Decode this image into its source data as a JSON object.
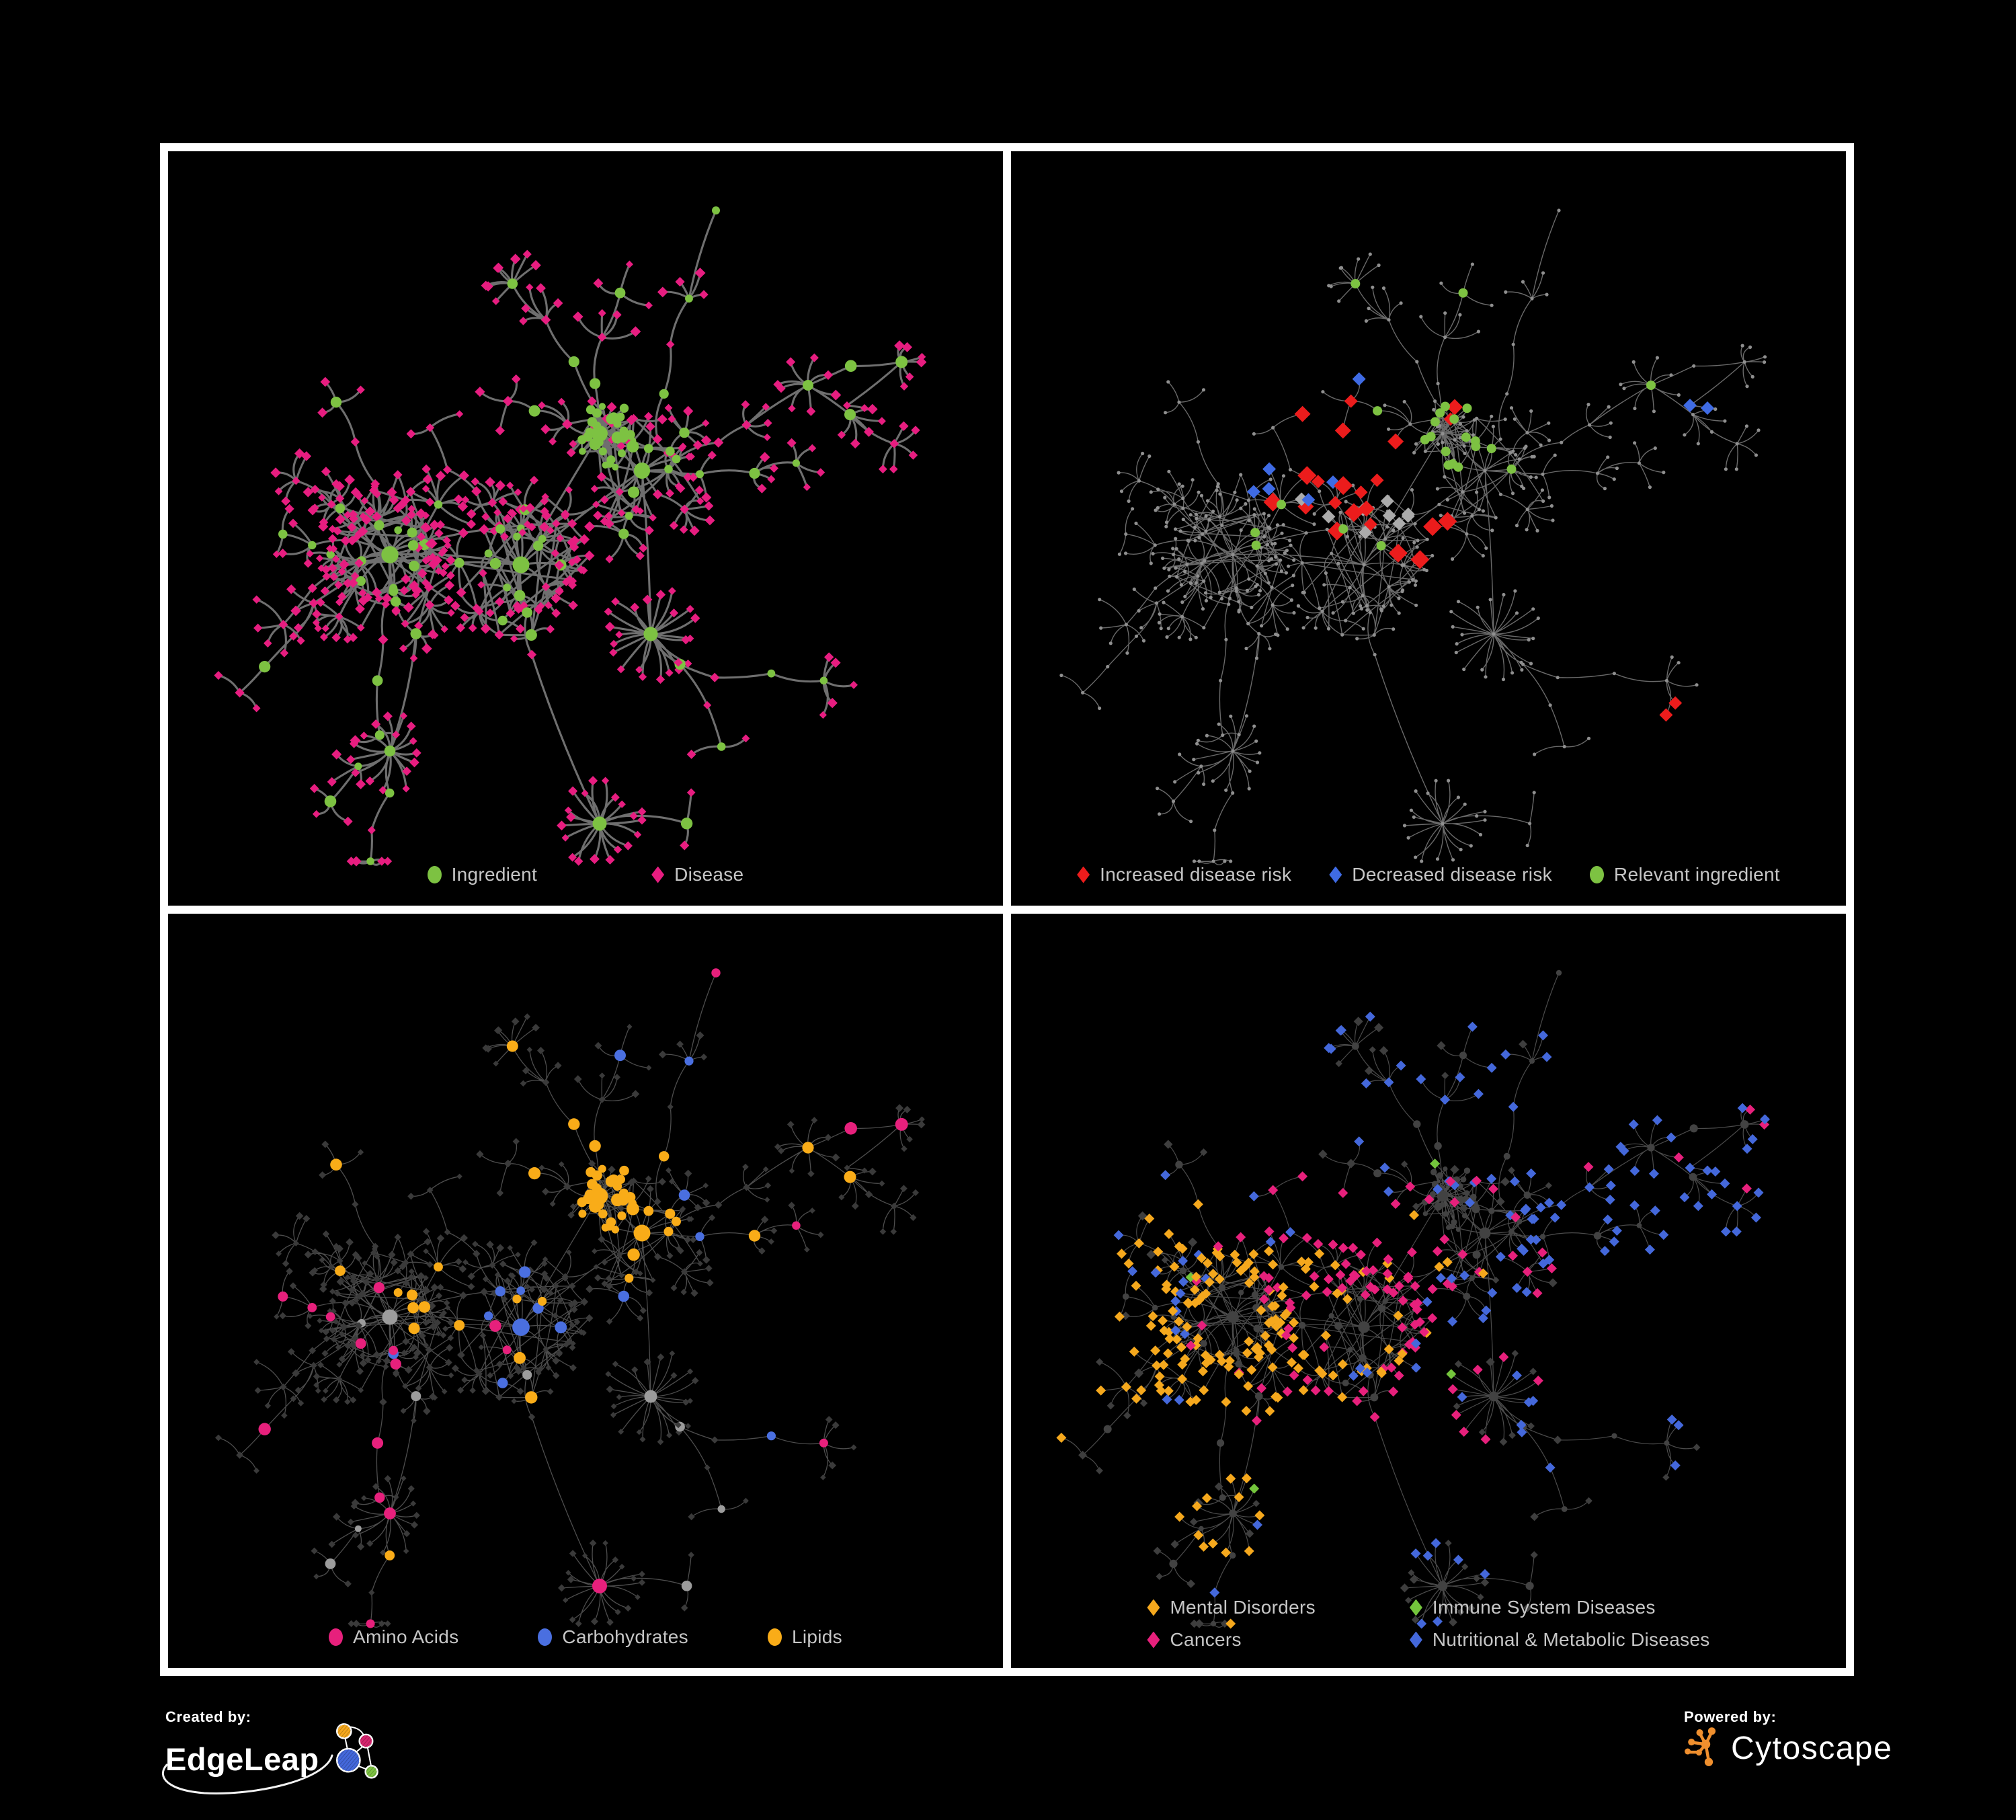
{
  "figure": {
    "background": "#000000",
    "frame_color": "#FFFFFF"
  },
  "panels": [
    {
      "id": "ingredient-disease",
      "legend": [
        {
          "shape": "circle",
          "color": "#7DC242",
          "label": "Ingredient"
        },
        {
          "shape": "diamond",
          "color": "#E71D80",
          "label": "Disease"
        }
      ],
      "style": {
        "edge": "#787878",
        "edge_width": 3.1,
        "edge_opacity": 0.92,
        "circle": "#7DC242",
        "diamond": "#E71D80"
      }
    },
    {
      "id": "disease-risk",
      "legend": [
        {
          "shape": "diamond",
          "color": "#EC1C1C",
          "label": "Increased disease risk"
        },
        {
          "shape": "diamond",
          "color": "#3F6BE4",
          "label": "Decreased disease risk"
        },
        {
          "shape": "circle",
          "color": "#7DC242",
          "label": "Relevant ingredient"
        }
      ],
      "style": {
        "edge": "#8C8C8C",
        "edge_width": 1.4,
        "edge_opacity": 0.75,
        "base": "#8F8F8F",
        "increased": "#EC1C1C",
        "decreased": "#3F6BE4",
        "neutral": "#ABABAB",
        "ingredient": "#7DC242",
        "counts": {
          "increased": 24,
          "decreased": 8,
          "neutral": 9,
          "ingredient": 26
        }
      }
    },
    {
      "id": "nutrients",
      "legend": [
        {
          "shape": "circle",
          "color": "#E7207C",
          "label": "Amino Acids"
        },
        {
          "shape": "circle",
          "color": "#4A6FE0",
          "label": "Carbohydrates"
        },
        {
          "shape": "circle",
          "color": "#F9AC18",
          "label": "Lipids"
        }
      ],
      "style": {
        "edge": "#8C8C8C",
        "edge_width": 1.3,
        "edge_opacity": 0.55,
        "diamond": "#3A3A3A",
        "circle": "#9C9C9C",
        "amino": "#E7207C",
        "carb": "#4A6FE0",
        "lipid": "#F9AC18",
        "counts": {
          "amino": 20,
          "carb": 15,
          "lipid": 58
        }
      }
    },
    {
      "id": "disease-categories",
      "legend": [
        {
          "shape": "diamond",
          "color": "#F5A81D",
          "label": "Mental Disorders"
        },
        {
          "shape": "diamond",
          "color": "#74C53C",
          "label": "Immune System Diseases"
        },
        {
          "shape": "diamond",
          "color": "#E7207C",
          "label": "Cancers"
        },
        {
          "shape": "diamond",
          "color": "#4468DB",
          "label": "Nutritional & Metabolic Diseases"
        }
      ],
      "style": {
        "edge": "#969696",
        "edge_width": 1.2,
        "edge_opacity": 0.5,
        "diamond": "#3E3E3E",
        "circle": "#424242",
        "mental": "#F5A81D",
        "immune": "#74C53C",
        "cancer": "#E7207C",
        "metabolic": "#4468DB"
      }
    }
  ],
  "footer": {
    "created_by": "Created by:",
    "brand_left": "EdgeLeap",
    "powered_by": "Powered by:",
    "brand_right": "Cytoscape",
    "edgeleap_colors": {
      "orange": "#F5A81D",
      "pink": "#D6246E",
      "blue": "#4468DB",
      "green": "#7DC242"
    },
    "cytoscape_color": "#EF8F2E"
  }
}
